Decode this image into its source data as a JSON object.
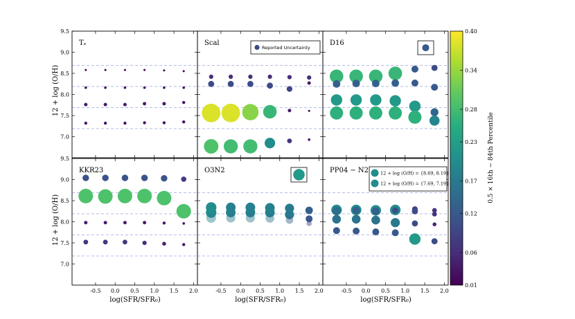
{
  "chart_data": {
    "type": "scatter",
    "x_label": "log(SFR/SFR₀)",
    "y_label": "12 + log (O/H)",
    "x_range": [
      -1.1,
      2.1
    ],
    "y_range": [
      6.5,
      9.5
    ],
    "x_ticks": [
      -0.5,
      0.0,
      0.5,
      1.0,
      1.5,
      2.0
    ],
    "x_tick_labels": [
      "-0.5",
      "0.0",
      "0.5",
      "1.0",
      "1.5",
      "2.0"
    ],
    "y_ticks": [
      7.0,
      7.5,
      8.0,
      8.5,
      9.0,
      9.5
    ],
    "y_tick_labels": [
      "7.0",
      "7.5",
      "8.0",
      "8.5",
      "9.0",
      "9.5"
    ],
    "x_positions": [
      -0.75,
      -0.25,
      0.25,
      0.75,
      1.25,
      1.75
    ],
    "colorbar": {
      "label": "0.5 × 16th − 84th Percentile",
      "range": [
        0.01,
        0.4
      ],
      "ticks": [
        0.01,
        0.06,
        0.12,
        0.17,
        0.23,
        0.28,
        0.34,
        0.4
      ],
      "tick_labels": [
        "0.01",
        "0.06",
        "0.12",
        "0.17",
        "0.23",
        "0.28",
        "0.34",
        "0.40"
      ]
    },
    "panels": [
      {
        "id": "Te",
        "label": "Tₑ",
        "bin_lines": [
          8.69,
          8.19,
          7.69,
          7.19
        ],
        "series": [
          {
            "y": [
              8.58,
              8.58,
              8.58,
              8.58,
              8.57,
              8.55
            ],
            "spread": [
              0.01,
              0.01,
              0.01,
              0.01,
              0.01,
              0.01
            ]
          },
          {
            "y": [
              8.16,
              8.16,
              8.16,
              8.16,
              8.16,
              8.16
            ],
            "spread": [
              0.02,
              0.02,
              0.02,
              0.02,
              0.02,
              0.02
            ]
          },
          {
            "y": [
              7.76,
              7.76,
              7.76,
              7.78,
              7.78,
              7.81
            ],
            "spread": [
              0.04,
              0.04,
              0.04,
              0.04,
              0.04,
              0.03
            ]
          },
          {
            "y": [
              7.32,
              7.32,
              7.32,
              7.33,
              7.33,
              7.35
            ],
            "spread": [
              0.03,
              0.03,
              0.03,
              0.03,
              0.03,
              0.03
            ]
          }
        ]
      },
      {
        "id": "Scal",
        "label": "Scal",
        "legend": [
          "Reported Uncertainty"
        ],
        "bin_lines": [
          8.69,
          8.19,
          7.69,
          7.19
        ],
        "series": [
          {
            "y": [
              8.42,
              8.42,
              8.42,
              8.42,
              8.41,
              8.4
            ],
            "spread": [
              0.06,
              0.06,
              0.06,
              0.06,
              0.06,
              0.06
            ]
          },
          {
            "y": [
              8.25,
              8.25,
              8.25,
              8.21,
              8.13,
              8.27
            ],
            "spread": [
              0.1,
              0.1,
              0.1,
              0.1,
              0.09,
              0.04
            ]
          },
          {
            "y": [
              7.56,
              7.56,
              7.58,
              7.59,
              7.62,
              7.61
            ],
            "spread": [
              0.38,
              0.38,
              0.33,
              0.27,
              0.04,
              0.01
            ]
          },
          {
            "y": [
              6.77,
              6.77,
              6.77,
              6.85,
              6.9,
              6.93
            ],
            "spread": [
              0.29,
              0.28,
              0.28,
              0.2,
              0.07,
              0.02
            ]
          }
        ]
      },
      {
        "id": "D16",
        "label": "D16",
        "bin_lines": [
          8.69,
          8.19,
          7.69,
          7.19
        ],
        "series": [
          {
            "y": [
              8.43,
              8.43,
              8.43,
              8.5,
              8.6,
              8.63
            ],
            "spread": [
              0.27,
              0.27,
              0.27,
              0.27,
              0.12,
              0.1
            ]
          },
          {
            "y": [
              8.25,
              8.26,
              8.26,
              8.27,
              8.27,
              8.17
            ],
            "spread": [
              0.13,
              0.13,
              0.13,
              0.13,
              0.12,
              0.12
            ]
          },
          {
            "y": [
              7.87,
              7.87,
              7.87,
              7.85,
              7.72,
              7.58
            ],
            "spread": [
              0.22,
              0.22,
              0.22,
              0.22,
              0.22,
              0.14
            ]
          },
          {
            "y": [
              7.56,
              7.56,
              7.56,
              7.56,
              7.46,
              7.38
            ],
            "spread": [
              0.26,
              0.26,
              0.26,
              0.26,
              0.26,
              0.19
            ]
          }
        ]
      },
      {
        "id": "KKR23",
        "label": "KKR23",
        "bin_lines": [
          8.69,
          8.19,
          7.69,
          7.19
        ],
        "series": [
          {
            "y": [
              9.04,
              9.04,
              9.04,
              9.04,
              9.03,
              9.01
            ],
            "spread": [
              0.11,
              0.11,
              0.11,
              0.11,
              0.11,
              0.08
            ]
          },
          {
            "y": [
              8.61,
              8.6,
              8.61,
              8.61,
              8.56,
              8.25
            ],
            "spread": [
              0.29,
              0.29,
              0.29,
              0.29,
              0.29,
              0.29
            ]
          },
          {
            "y": [
              7.98,
              7.98,
              7.98,
              7.98,
              7.97,
              7.96
            ],
            "spread": [
              0.04,
              0.04,
              0.04,
              0.04,
              0.03,
              0.02
            ]
          },
          {
            "y": [
              7.52,
              7.52,
              7.52,
              7.5,
              7.48,
              7.46
            ],
            "spread": [
              0.07,
              0.07,
              0.07,
              0.06,
              0.05,
              0.03
            ]
          }
        ]
      },
      {
        "id": "O3N2",
        "label": "O3N2",
        "bin_lines": [
          8.69,
          8.19,
          7.69,
          7.19
        ],
        "series": [
          {
            "y": [
              8.34,
              8.34,
              8.34,
              8.33,
              8.32,
              8.27
            ],
            "spread": [
              0.2,
              0.18,
              0.18,
              0.18,
              0.17,
              0.13
            ]
          },
          {
            "y": [
              8.22,
              8.22,
              8.22,
              8.22,
              8.17,
              8.07
            ],
            "spread": [
              0.2,
              0.18,
              0.18,
              0.18,
              0.17,
              0.12
            ]
          },
          {
            "y": [
              8.09,
              8.09,
              8.09,
              8.08,
              8.04,
              7.96
            ],
            "spread": [
              0.18,
              0.17,
              0.17,
              0.16,
              0.13,
              0.08
            ]
          }
        ]
      },
      {
        "id": "PP04-N2",
        "label": "PP04 − N2",
        "legend": [
          "12 + log (O/H) = {8.69, 8.19}",
          "12 + log (O/H) = {7.69, 7.19}"
        ],
        "bin_lines": [
          8.69,
          8.19,
          7.69,
          7.19
        ],
        "series": [
          {
            "y": [
              8.28,
              8.28,
              8.27,
              8.28,
              8.3,
              8.27
            ],
            "spread": [
              0.2,
              0.2,
              0.2,
              0.2,
              0.09,
              0.07
            ]
          },
          {
            "y": [
              8.26,
              8.27,
              8.25,
              8.27,
              8.25,
              8.18
            ],
            "spread": [
              0.15,
              0.13,
              0.13,
              0.1,
              0.1,
              0.07
            ]
          },
          {
            "y": [
              8.06,
              8.06,
              8.04,
              7.98,
              7.96,
              7.94
            ],
            "spread": [
              0.16,
              0.16,
              0.16,
              0.17,
              0.1,
              0.05
            ]
          },
          {
            "y": [
              7.79,
              7.78,
              7.76,
              7.74,
              7.59,
              7.54
            ],
            "spread": [
              0.12,
              0.12,
              0.12,
              0.12,
              0.22,
              0.1
            ]
          }
        ]
      }
    ],
    "insets": [
      {
        "panel": "D16",
        "y": 9.15,
        "spread": 0.12
      },
      {
        "panel": "O3N2",
        "y": 9.15,
        "spread": 0.22
      }
    ]
  }
}
